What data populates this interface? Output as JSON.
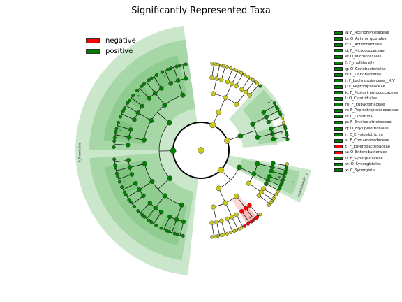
{
  "chart_data": {
    "type": "cladogram",
    "title": "Significantly Represented Taxa",
    "groups": [
      {
        "name": "negative",
        "color": "#ff0000"
      },
      {
        "name": "positive",
        "color": "#008000"
      }
    ],
    "taxa": [
      {
        "key": "a",
        "name": "F_Actinomycetaceae",
        "group": "positive"
      },
      {
        "key": "b",
        "name": "O_Actinomycetales",
        "group": "positive"
      },
      {
        "key": "c",
        "name": "C_Actinobacteria",
        "group": "positive"
      },
      {
        "key": "d",
        "name": "F_Micrococcaceae",
        "group": "positive"
      },
      {
        "key": "e",
        "name": "O_Micrococcales",
        "group": "positive"
      },
      {
        "key": "f",
        "name": "F_multifamily",
        "group": "positive"
      },
      {
        "key": "g",
        "name": "O_Coriobacteriales",
        "group": "positive"
      },
      {
        "key": "h",
        "name": "C_Coriobacteriia",
        "group": "positive"
      },
      {
        "key": "i",
        "name": "F_Lachnospiraceae__XIV",
        "group": "positive"
      },
      {
        "key": "j",
        "name": "F_Peptoniphilaceae",
        "group": "positive"
      },
      {
        "key": "k",
        "name": "F_Peptostreptococcaceae",
        "group": "positive"
      },
      {
        "key": "l",
        "name": "O_Clostridiales",
        "group": "positive"
      },
      {
        "key": "m",
        "name": "F_Eubacteriaceae",
        "group": "positive"
      },
      {
        "key": "n",
        "name": "F_Peptostreptococcaceae",
        "group": "positive"
      },
      {
        "key": "o",
        "name": "C_Clostridia",
        "group": "positive"
      },
      {
        "key": "p",
        "name": "F_Erysipelotrichaceae",
        "group": "positive"
      },
      {
        "key": "q",
        "name": "O_Erysipelotrichales",
        "group": "positive"
      },
      {
        "key": "r",
        "name": "C_Erysipelotrichia",
        "group": "positive"
      },
      {
        "key": "s",
        "name": "F_Comamonadaceae",
        "group": "positive"
      },
      {
        "key": "t",
        "name": "F_Enterobacteriaceae",
        "group": "negative"
      },
      {
        "key": "u",
        "name": "O_Enterobacterales",
        "group": "negative"
      },
      {
        "key": "v",
        "name": "F_Synergistaceae",
        "group": "positive"
      },
      {
        "key": "w",
        "name": "O_Synergistales",
        "group": "positive"
      },
      {
        "key": "x",
        "name": "C_Synergistia",
        "group": "positive"
      }
    ],
    "phylum_labels": [
      "P_Firmicutes",
      "P_Synergistetes"
    ],
    "legend_placement": "left-top and right"
  },
  "colors": {
    "positive_fill": "#008000",
    "negative_fill": "#ff0000",
    "neutral_node": "#c8c81e",
    "positive_shade": "#5cb35c",
    "negative_shade": "#ff8080"
  }
}
